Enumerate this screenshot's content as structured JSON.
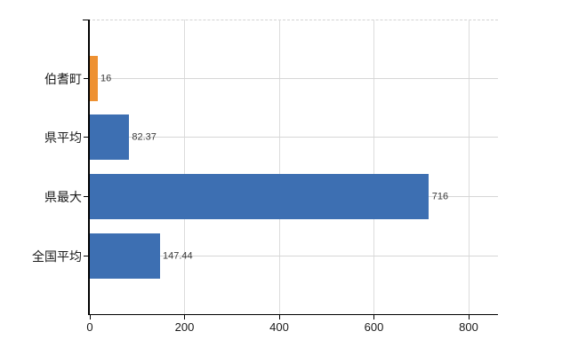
{
  "chart_data": {
    "type": "bar",
    "orientation": "horizontal",
    "title": "",
    "xlabel": "",
    "ylabel": "",
    "categories": [
      "伯耆町",
      "県平均",
      "県最大",
      "全国平均"
    ],
    "values": [
      16,
      82.37,
      716,
      147.44
    ],
    "value_labels": [
      "16",
      "82.37",
      "716",
      "147.44"
    ],
    "bar_colors": [
      "#ee9132",
      "#3d6fb2",
      "#3d6fb2",
      "#3d6fb2"
    ],
    "x_ticks": [
      0,
      200,
      400,
      600,
      800
    ],
    "x_tick_labels": [
      "0",
      "200",
      "400",
      "600",
      "800"
    ],
    "xlim": [
      0,
      863
    ],
    "grid": true,
    "legend_position": "none"
  },
  "colors": {
    "bar_orange": "#ee9132",
    "bar_blue": "#3d6fb2",
    "gridline": "#d6d6d6",
    "axis": "#000000",
    "label_text": "#1a1a1a",
    "value_text": "#3a3a3a",
    "background": "#ffffff"
  }
}
